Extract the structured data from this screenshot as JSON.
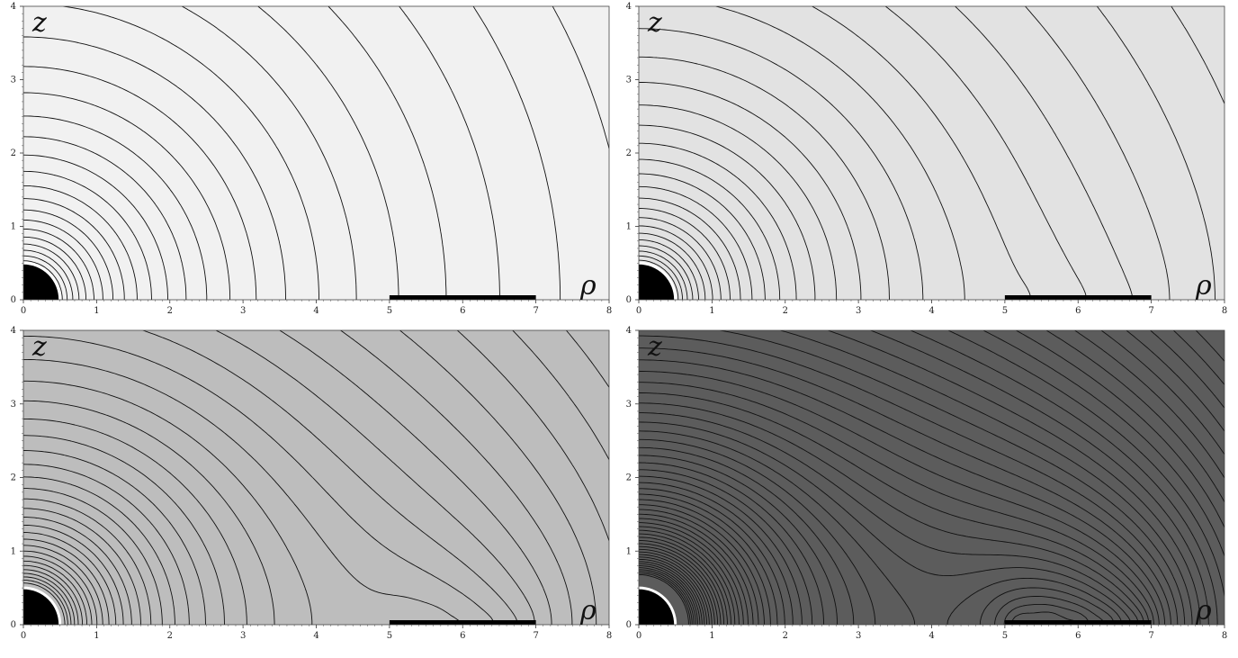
{
  "chart_data": [
    {
      "type": "contour",
      "panel": "top-left",
      "xlabel": "ρ",
      "ylabel": "z",
      "xlim": [
        0,
        8
      ],
      "ylim": [
        0,
        4
      ],
      "x_ticks": [
        "0",
        "1",
        "2",
        "3",
        "4",
        "5",
        "6",
        "7",
        "8"
      ],
      "y_ticks": [
        "0",
        "1",
        "2",
        "3",
        "4"
      ],
      "background_color": "#f1f1f1",
      "ring_strength": 0.0,
      "central_body": {
        "shape": "quarter-disk",
        "radius": 0.5,
        "outline": "#ffffff"
      },
      "ring": {
        "rho_start": 5,
        "rho_end": 7
      },
      "contour_count": 24
    },
    {
      "type": "contour",
      "panel": "top-right",
      "xlabel": "ρ",
      "ylabel": "z",
      "xlim": [
        0,
        8
      ],
      "ylim": [
        0,
        4
      ],
      "x_ticks": [
        "0",
        "1",
        "2",
        "3",
        "4",
        "5",
        "6",
        "7",
        "8"
      ],
      "y_ticks": [
        "0",
        "1",
        "2",
        "3",
        "4"
      ],
      "background_color": "#e2e2e2",
      "ring_strength": 0.25,
      "central_body": {
        "shape": "quarter-disk",
        "radius": 0.5,
        "outline": "#ffffff"
      },
      "ring": {
        "rho_start": 5,
        "rho_end": 7
      },
      "contour_count": 26
    },
    {
      "type": "contour",
      "panel": "bottom-left",
      "xlabel": "ρ",
      "ylabel": "z",
      "xlim": [
        0,
        8
      ],
      "ylim": [
        0,
        4
      ],
      "x_ticks": [
        "0",
        "1",
        "2",
        "3",
        "4",
        "5",
        "6",
        "7",
        "8"
      ],
      "y_ticks": [
        "0",
        "1",
        "2",
        "3",
        "4"
      ],
      "background_color": "#bdbdbd",
      "ring_strength": 1.0,
      "central_body": {
        "shape": "quarter-disk",
        "radius": 0.5,
        "outline": "#ffffff"
      },
      "ring": {
        "rho_start": 5,
        "rho_end": 7
      },
      "contour_count": 34
    },
    {
      "type": "contour",
      "panel": "bottom-right",
      "xlabel": "ρ",
      "ylabel": "z",
      "xlim": [
        0,
        8
      ],
      "ylim": [
        0,
        4
      ],
      "x_ticks": [
        "0",
        "1",
        "2",
        "3",
        "4",
        "5",
        "6",
        "7",
        "8"
      ],
      "y_ticks": [
        "0",
        "1",
        "2",
        "3",
        "4"
      ],
      "background_color": "#5c5c5c",
      "ring_strength": 3.0,
      "central_body": {
        "shape": "quarter-disk",
        "radius": 0.5,
        "outline": "#ffffff"
      },
      "ring": {
        "rho_start": 5,
        "rho_end": 7
      },
      "contour_count": 60
    }
  ]
}
